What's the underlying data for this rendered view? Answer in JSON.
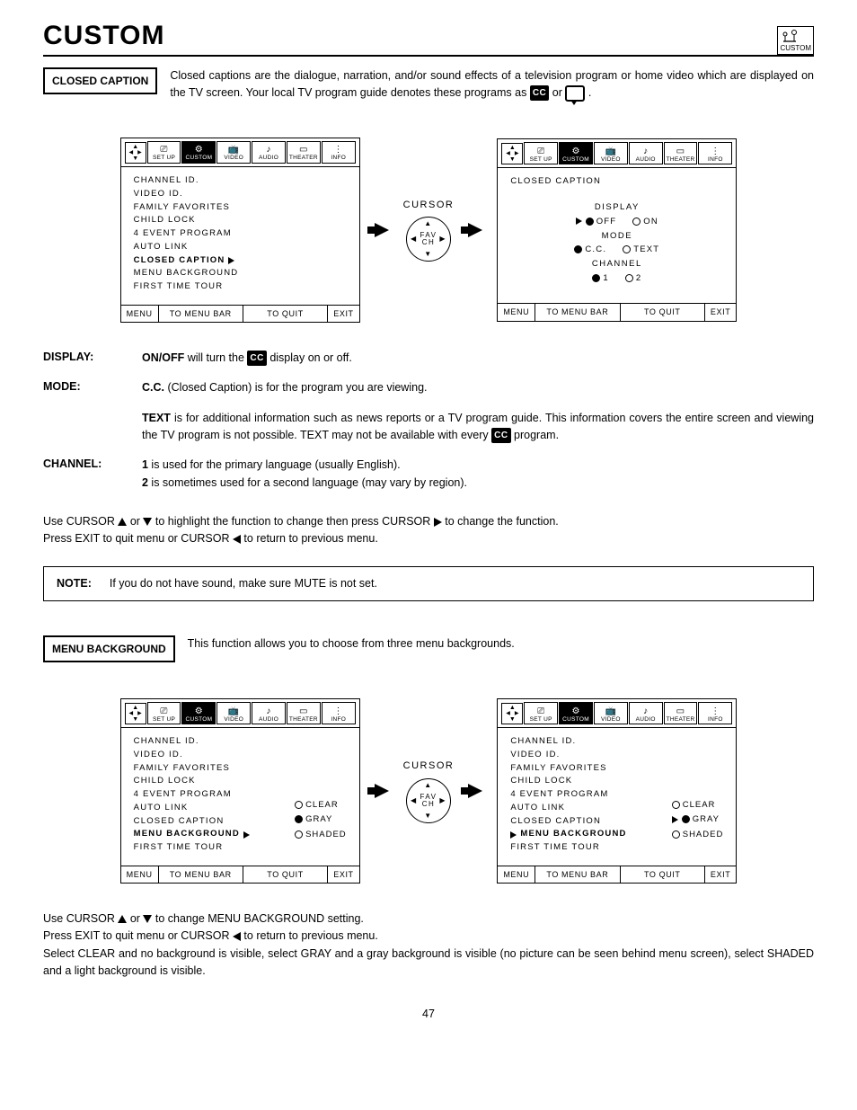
{
  "page_number": "47",
  "header": {
    "title": "CUSTOM",
    "icon_label": "CUSTOM"
  },
  "section1": {
    "label": "CLOSED CAPTION",
    "intro_a": "Closed captions are the dialogue, narration, and/or sound effects of a television program or home video which are displayed on the TV screen.  Your local TV program guide denotes these programs as ",
    "intro_b": " or ",
    "intro_c": " ."
  },
  "tabs": [
    "SET UP",
    "CUSTOM",
    "VIDEO",
    "AUDIO",
    "THEATER",
    "INFO"
  ],
  "menu_list": [
    "CHANNEL ID.",
    "VIDEO ID.",
    "FAMILY FAVORITES",
    "CHILD LOCK",
    "4 EVENT PROGRAM",
    "AUTO LINK",
    "CLOSED CAPTION",
    "MENU BACKGROUND",
    "FIRST TIME TOUR"
  ],
  "footer": {
    "a": "MENU",
    "b": "TO MENU BAR",
    "c": "TO QUIT",
    "d": "EXIT"
  },
  "cursor_label": "CURSOR",
  "cursor_center": "FAV\nCH",
  "cc_screen": {
    "title": "CLOSED CAPTION",
    "rows": [
      {
        "label": "DISPLAY",
        "opts": [
          {
            "k": "OFF",
            "sel": true,
            "ptr": true
          },
          {
            "k": "ON",
            "sel": false
          }
        ]
      },
      {
        "label": "MODE",
        "opts": [
          {
            "k": "C.C.",
            "sel": true
          },
          {
            "k": "TEXT",
            "sel": false
          }
        ]
      },
      {
        "label": "CHANNEL",
        "opts": [
          {
            "k": "1",
            "sel": true
          },
          {
            "k": "2",
            "sel": false
          }
        ]
      }
    ]
  },
  "defs": {
    "display_k": "DISPLAY:",
    "display_v_a": "ON/OFF",
    "display_v_b": " will turn the ",
    "display_v_c": " display on or off.",
    "mode_k": "MODE:",
    "mode_v1_a": "C.C.",
    "mode_v1_b": " (Closed Caption) is for the program you are viewing.",
    "mode_v2_a": "TEXT",
    "mode_v2_b": " is for additional information such as news reports or a TV program guide.  This information covers the entire screen and viewing the TV program is not possible.  TEXT may not be available with every ",
    "mode_v2_c": " program.",
    "channel_k": "CHANNEL:",
    "channel_v1_a": "1",
    "channel_v1_b": " is used for the primary language (usually English).",
    "channel_v2_a": "2",
    "channel_v2_b": " is sometimes used for a second language (may vary by region)."
  },
  "instr1": "Use CURSOR ▲ or ▼ to highlight the function to change then press CURSOR ▶ to change the function.",
  "instr2": "Press EXIT to quit menu or CURSOR ◀ to return to previous menu.",
  "note_k": "NOTE:",
  "note_v": "If you do not have sound, make sure MUTE is not set.",
  "section2": {
    "label": "MENU BACKGROUND",
    "intro": "This function allows you to choose from three menu backgrounds."
  },
  "bg_opts": [
    "CLEAR",
    "GRAY",
    "SHADED"
  ],
  "bg_left_sel": 1,
  "bg_right_sel": 1,
  "instr3": "Use CURSOR ▲ or ▼ to change MENU BACKGROUND setting.",
  "instr4": "Press EXIT to quit menu or CURSOR ◀ to return to previous menu.",
  "instr5": "Select CLEAR and no background is visible, select GRAY and a gray background is visible (no picture can be seen behind menu screen), select SHADED and a light background is visible."
}
